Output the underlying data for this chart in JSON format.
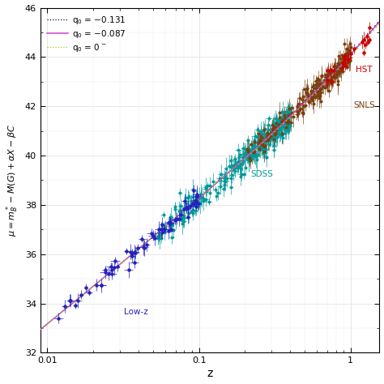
{
  "xlabel": "z",
  "ylabel": "$\\mu = m^*_B - M(G) + \\alpha X - \\beta C$",
  "ylim": [
    32,
    46
  ],
  "yticks": [
    32,
    34,
    36,
    38,
    40,
    42,
    44,
    46
  ],
  "background": "#ffffff",
  "grid_color": "#e8e0e0",
  "lowz_color": "#2222bb",
  "sdss_color": "#009999",
  "snls_color": "#7a4010",
  "hst_color": "#cc0000",
  "line_q0_131_color": "#000066",
  "line_q0_087_color": "#cc44cc",
  "line_q0_0_color": "#99cc00",
  "legend_labels": [
    "q$_0$ = $-$0.131",
    "q$_0$ = $-$0.087",
    "q$_0$ = 0$^-$"
  ],
  "label_lowz": "Low-z",
  "label_sdss": "SDSS",
  "label_snls": "SNLS",
  "label_hst": "HST"
}
